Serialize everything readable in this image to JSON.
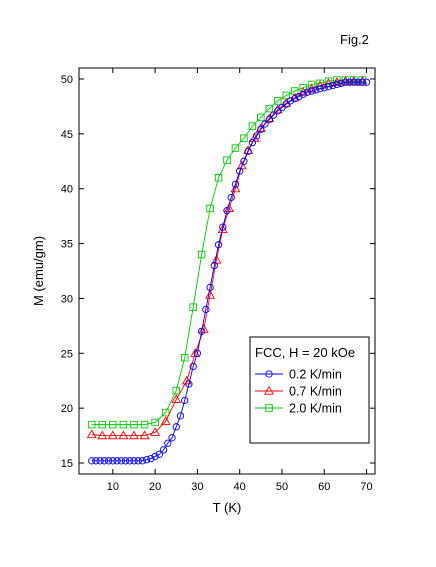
{
  "figure_label": "Fig.2",
  "chart_data": {
    "type": "line",
    "xlabel": "T (K)",
    "ylabel": "M (emu/gm)",
    "xlim": [
      2,
      72
    ],
    "ylim": [
      14,
      51
    ],
    "xticks": [
      10,
      20,
      30,
      40,
      50,
      60,
      70
    ],
    "yticks": [
      15,
      20,
      25,
      30,
      35,
      40,
      45,
      50
    ],
    "grid": false,
    "legend": {
      "title": "FCC, H = 20 kOe",
      "placement": "center-right"
    },
    "series": [
      {
        "name": "0.2 K/min",
        "color": "#0000ff",
        "marker": "circle",
        "points": [
          [
            5,
            15.2
          ],
          [
            6,
            15.2
          ],
          [
            7,
            15.2
          ],
          [
            8,
            15.2
          ],
          [
            9,
            15.2
          ],
          [
            10,
            15.2
          ],
          [
            11,
            15.2
          ],
          [
            12,
            15.2
          ],
          [
            13,
            15.2
          ],
          [
            14,
            15.2
          ],
          [
            15,
            15.2
          ],
          [
            16,
            15.2
          ],
          [
            17,
            15.2
          ],
          [
            18,
            15.3
          ],
          [
            19,
            15.4
          ],
          [
            20,
            15.6
          ],
          [
            21,
            15.8
          ],
          [
            22,
            16.2
          ],
          [
            23,
            16.8
          ],
          [
            24,
            17.3
          ],
          [
            25,
            18.3
          ],
          [
            26,
            19.3
          ],
          [
            27,
            20.7
          ],
          [
            28,
            22.2
          ],
          [
            29,
            23.8
          ],
          [
            30,
            25.0
          ],
          [
            31,
            27.0
          ],
          [
            32,
            29.0
          ],
          [
            33,
            31.0
          ],
          [
            34,
            33.0
          ],
          [
            35,
            34.9
          ],
          [
            36,
            36.5
          ],
          [
            37,
            38.0
          ],
          [
            38,
            39.2
          ],
          [
            39,
            40.4
          ],
          [
            40,
            41.6
          ],
          [
            41,
            42.5
          ],
          [
            42,
            43.4
          ],
          [
            43,
            44.2
          ],
          [
            44,
            44.8
          ],
          [
            45,
            45.4
          ],
          [
            46,
            45.9
          ],
          [
            47,
            46.3
          ],
          [
            48,
            46.7
          ],
          [
            49,
            47.1
          ],
          [
            50,
            47.4
          ],
          [
            51,
            47.7
          ],
          [
            52,
            48.0
          ],
          [
            53,
            48.2
          ],
          [
            54,
            48.4
          ],
          [
            55,
            48.6
          ],
          [
            56,
            48.8
          ],
          [
            57,
            48.9
          ],
          [
            58,
            49.0
          ],
          [
            59,
            49.1
          ],
          [
            60,
            49.2
          ],
          [
            61,
            49.3
          ],
          [
            62,
            49.4
          ],
          [
            63,
            49.5
          ],
          [
            64,
            49.6
          ],
          [
            65,
            49.7
          ],
          [
            66,
            49.7
          ],
          [
            67,
            49.7
          ],
          [
            68,
            49.7
          ],
          [
            69,
            49.7
          ],
          [
            70,
            49.7
          ]
        ]
      },
      {
        "name": "0.7 K/min",
        "color": "#ff0000",
        "marker": "triangle",
        "points": [
          [
            5,
            17.6
          ],
          [
            7.5,
            17.5
          ],
          [
            10,
            17.5
          ],
          [
            12.5,
            17.5
          ],
          [
            15,
            17.5
          ],
          [
            17.5,
            17.5
          ],
          [
            20,
            17.8
          ],
          [
            22.5,
            18.8
          ],
          [
            25,
            20.8
          ],
          [
            27.5,
            22.5
          ],
          [
            29.5,
            25.0
          ],
          [
            31.5,
            27.2
          ],
          [
            33,
            30.3
          ],
          [
            34.5,
            33.5
          ],
          [
            36,
            36.3
          ],
          [
            37.5,
            38.2
          ],
          [
            39,
            40.0
          ],
          [
            40.5,
            42.1
          ],
          [
            42,
            43.5
          ],
          [
            43.5,
            44.6
          ],
          [
            45,
            45.5
          ],
          [
            47,
            46.4
          ],
          [
            49,
            47.2
          ],
          [
            51,
            47.8
          ],
          [
            53,
            48.3
          ],
          [
            55,
            48.8
          ],
          [
            57,
            49.1
          ],
          [
            59,
            49.4
          ],
          [
            61,
            49.6
          ],
          [
            63,
            49.7
          ],
          [
            65,
            49.8
          ],
          [
            67,
            49.8
          ],
          [
            69,
            49.8
          ]
        ]
      },
      {
        "name": "2.0 K/min",
        "color": "#00cc00",
        "marker": "square",
        "points": [
          [
            5,
            18.5
          ],
          [
            7.5,
            18.5
          ],
          [
            10,
            18.5
          ],
          [
            12.5,
            18.5
          ],
          [
            15,
            18.5
          ],
          [
            17.5,
            18.5
          ],
          [
            20,
            18.7
          ],
          [
            22.5,
            19.6
          ],
          [
            25,
            21.6
          ],
          [
            27,
            24.6
          ],
          [
            29,
            29.2
          ],
          [
            31,
            34.0
          ],
          [
            33,
            38.2
          ],
          [
            35,
            41.0
          ],
          [
            37,
            42.6
          ],
          [
            39,
            43.7
          ],
          [
            41,
            44.6
          ],
          [
            43,
            45.7
          ],
          [
            45,
            46.5
          ],
          [
            47,
            47.3
          ],
          [
            49,
            48.0
          ],
          [
            51,
            48.5
          ],
          [
            53,
            48.9
          ],
          [
            55,
            49.2
          ],
          [
            57,
            49.5
          ],
          [
            59,
            49.6
          ],
          [
            61,
            49.8
          ],
          [
            63,
            49.9
          ],
          [
            65,
            49.9
          ],
          [
            67,
            49.9
          ],
          [
            69,
            49.9
          ]
        ]
      }
    ]
  }
}
